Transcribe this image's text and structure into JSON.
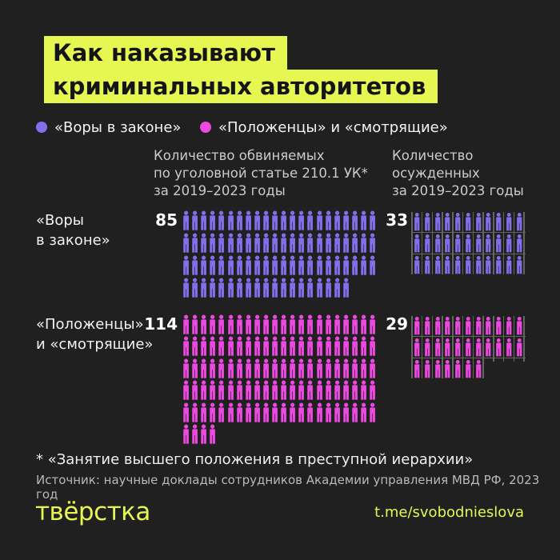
{
  "title": {
    "line1": "Как наказывают",
    "line2": "криминальных авторитетов"
  },
  "colors": {
    "background": "#202020",
    "accent_yellow": "#e6f752",
    "purple": "#8270eb",
    "pink": "#eb49e0",
    "prison_bar_gray": "#646464",
    "text_light": "#f3f3f3",
    "text_gray": "#cbcbcb"
  },
  "legend": [
    {
      "label": "«Воры в законе»",
      "color": "#8270eb"
    },
    {
      "label": "«Положенцы» и «смотрящие»",
      "color": "#eb49e0"
    }
  ],
  "columns": [
    {
      "header_lines": [
        "Количество обвиняемых",
        "по уголовной статье 210.1 УК*",
        "за 2019–2023 годы"
      ]
    },
    {
      "header_lines": [
        "Количество",
        "осужденных",
        "за 2019–2023 годы"
      ]
    }
  ],
  "chart_data": {
    "type": "pictogram",
    "unit": "people-icons, 1 icon = 1 person",
    "accused_icons_per_row": 22,
    "convicted_icons_per_row": 11,
    "convicted_style": "icons shown behind vertical prison bars",
    "rows": [
      {
        "group": "«Воры в законе»",
        "label_lines": [
          "«Воры",
          "в законе»"
        ],
        "color": "#8270eb",
        "accused": 85,
        "convicted": 33
      },
      {
        "group": "«Положенцы» и «смотрящие»",
        "label_lines": [
          "«Положенцы»",
          "и «смотрящие»"
        ],
        "color": "#eb49e0",
        "accused": 114,
        "convicted": 29
      }
    ]
  },
  "footnote": "* «Занятие высшего положения в преступной иерархии»",
  "source": "Источник: научные доклады сотрудников Академии управления МВД РФ, 2023 год",
  "footer": {
    "logo": "твёрстка",
    "link": "t.me/svobodnieslova"
  }
}
